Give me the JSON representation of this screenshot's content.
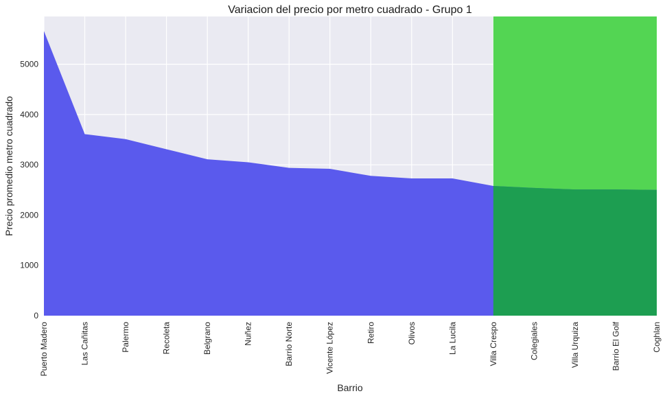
{
  "chart_data": {
    "type": "area",
    "title": "Variacion del precio por metro cuadrado - Grupo 1",
    "xlabel": "Barrio",
    "ylabel": "Precio promedio metro cuadrado",
    "categories": [
      "Puerto Madero",
      "Las Cañitas",
      "Palermo",
      "Recoleta",
      "Belgrano",
      "Nuñez",
      "Barrio Norte",
      "Vicente López",
      "Retiro",
      "Olivos",
      "La Lucila",
      "Villa Crespo",
      "Colegiales",
      "Villa Urquiza",
      "Barrio El Golf",
      "Coghlan"
    ],
    "values": [
      5660,
      3610,
      3510,
      3310,
      3110,
      3050,
      2940,
      2920,
      2780,
      2730,
      2730,
      2580,
      2540,
      2510,
      2510,
      2500
    ],
    "ylim": [
      0,
      5950
    ],
    "yticks": [
      0,
      1000,
      2000,
      3000,
      4000,
      5000
    ],
    "grid": true,
    "highlight_start_index": 11,
    "colors": {
      "area": "#5353ec",
      "highlight_band": "#53d553",
      "highlight_area": "#1d9e51",
      "plot_background": "#eaeaf2",
      "grid": "#ffffff"
    }
  }
}
